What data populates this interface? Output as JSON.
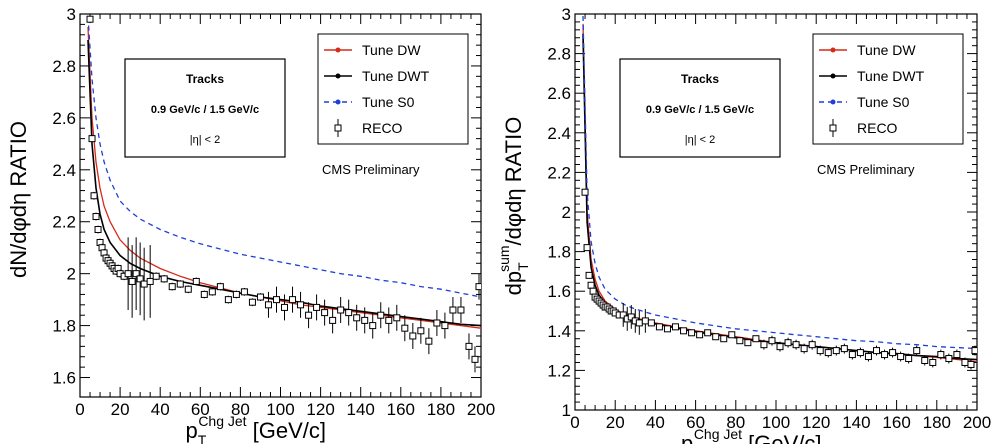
{
  "chart_data": [
    {
      "type": "line",
      "ylabel": "dN/dφdη RATIO",
      "xlabel_main": "p",
      "xlabel_sub": "T",
      "xlabel_sup": "Chg Jet",
      "xlabel_unit": "[GeV/c]",
      "xlim": [
        0,
        200
      ],
      "ylim": [
        1.5,
        3.0
      ],
      "xticks": [
        0,
        20,
        40,
        60,
        80,
        100,
        120,
        140,
        160,
        180,
        200
      ],
      "xtick_labels": [
        "0",
        "20",
        "40",
        "60",
        "80",
        "100",
        "120",
        "140",
        "160",
        "180",
        "200"
      ],
      "yticks": [
        1.6,
        1.8,
        2.0,
        2.2,
        2.4,
        2.6,
        2.8,
        3.0
      ],
      "ytick_labels": [
        "1.6",
        "1.8",
        "2",
        "2.2",
        "2.4",
        "2.6",
        "2.8",
        "3"
      ],
      "infobox": [
        "Tracks",
        "0.9 GeV/c / 1.5 GeV/c",
        "|η| < 2"
      ],
      "annotation": "CMS Preliminary",
      "legend": [
        "Tune DW",
        "Tune DWT",
        "Tune S0",
        "RECO"
      ],
      "series": [
        {
          "name": "Tune DW",
          "x": [
            4,
            6,
            8,
            10,
            12,
            15,
            20,
            25,
            30,
            40,
            50,
            60,
            70,
            80,
            90,
            100,
            110,
            120,
            130,
            140,
            150,
            160,
            170,
            180,
            190,
            200
          ],
          "values": [
            2.95,
            2.6,
            2.43,
            2.33,
            2.26,
            2.2,
            2.13,
            2.09,
            2.06,
            2.02,
            1.99,
            1.965,
            1.945,
            1.925,
            1.91,
            1.895,
            1.88,
            1.87,
            1.86,
            1.85,
            1.84,
            1.83,
            1.82,
            1.81,
            1.8,
            1.79
          ]
        },
        {
          "name": "Tune DWT",
          "x": [
            4,
            6,
            8,
            10,
            12,
            15,
            20,
            25,
            30,
            40,
            50,
            60,
            70,
            80,
            90,
            100,
            110,
            120,
            130,
            140,
            150,
            160,
            170,
            180,
            190,
            200
          ],
          "values": [
            2.9,
            2.5,
            2.33,
            2.23,
            2.17,
            2.12,
            2.07,
            2.04,
            2.02,
            1.99,
            1.97,
            1.955,
            1.94,
            1.925,
            1.91,
            1.9,
            1.89,
            1.875,
            1.865,
            1.855,
            1.845,
            1.835,
            1.825,
            1.815,
            1.805,
            1.8
          ]
        },
        {
          "name": "Tune S0",
          "x": [
            4,
            6,
            8,
            10,
            12,
            15,
            20,
            25,
            30,
            40,
            50,
            60,
            70,
            80,
            90,
            100,
            110,
            120,
            130,
            140,
            150,
            160,
            170,
            180,
            190,
            200
          ],
          "values": [
            2.99,
            2.75,
            2.6,
            2.5,
            2.43,
            2.36,
            2.28,
            2.24,
            2.21,
            2.17,
            2.14,
            2.115,
            2.095,
            2.075,
            2.06,
            2.045,
            2.03,
            2.015,
            2.0,
            1.99,
            1.975,
            1.965,
            1.95,
            1.94,
            1.925,
            1.91
          ]
        },
        {
          "name": "RECO",
          "x": [
            5,
            6,
            7,
            8,
            9,
            10,
            11,
            12,
            13,
            14,
            15,
            16,
            17,
            18,
            19,
            20,
            22,
            24,
            26,
            28,
            30,
            32,
            35,
            38,
            42,
            46,
            50,
            54,
            58,
            62,
            66,
            70,
            74,
            78,
            82,
            86,
            90,
            94,
            98,
            102,
            106,
            110,
            114,
            118,
            122,
            126,
            130,
            134,
            138,
            142,
            146,
            150,
            154,
            158,
            162,
            166,
            170,
            174,
            178,
            182,
            186,
            190,
            194,
            197,
            199
          ],
          "values": [
            2.98,
            2.52,
            2.3,
            2.22,
            2.17,
            2.12,
            2.1,
            2.08,
            2.06,
            2.05,
            2.04,
            2.03,
            2.02,
            2.01,
            2.02,
            2.0,
            1.99,
            2.0,
            1.97,
            2.0,
            1.98,
            1.96,
            1.97,
            1.99,
            1.98,
            1.95,
            1.96,
            1.94,
            1.97,
            1.92,
            1.93,
            1.95,
            1.9,
            1.92,
            1.93,
            1.89,
            1.91,
            1.88,
            1.9,
            1.87,
            1.9,
            1.88,
            1.84,
            1.87,
            1.85,
            1.82,
            1.86,
            1.85,
            1.83,
            1.82,
            1.8,
            1.84,
            1.82,
            1.83,
            1.79,
            1.76,
            1.78,
            1.74,
            1.81,
            1.8,
            1.86,
            1.86,
            1.72,
            1.67,
            1.95
          ]
        }
      ]
    },
    {
      "type": "line",
      "ylabel": "dp_T^sum/dφdη RATIO",
      "ylabel_a": "dp",
      "ylabel_sub": "T",
      "ylabel_sup": "sum",
      "ylabel_b": "/dφdη RATIO",
      "xlabel_main": "p",
      "xlabel_sub": "T",
      "xlabel_sup": "Chg Jet",
      "xlabel_unit": "[GeV/c]",
      "xlim": [
        0,
        200
      ],
      "ylim": [
        1.0,
        3.0
      ],
      "xticks": [
        0,
        20,
        40,
        60,
        80,
        100,
        120,
        140,
        160,
        180,
        200
      ],
      "xtick_labels": [
        "0",
        "20",
        "40",
        "60",
        "80",
        "100",
        "120",
        "140",
        "160",
        "180",
        "200"
      ],
      "yticks": [
        1.0,
        1.2,
        1.4,
        1.6,
        1.8,
        2.0,
        2.2,
        2.4,
        2.6,
        2.8,
        3.0
      ],
      "ytick_labels": [
        "1",
        "1.2",
        "1.4",
        "1.6",
        "1.8",
        "2",
        "2.2",
        "2.4",
        "2.6",
        "2.8",
        "3"
      ],
      "infobox": [
        "Tracks",
        "0.9 GeV/c / 1.5 GeV/c",
        "|η| < 2"
      ],
      "annotation": "CMS Preliminary",
      "legend": [
        "Tune DW",
        "Tune DWT",
        "Tune S0",
        "RECO"
      ],
      "series": [
        {
          "name": "Tune DW",
          "x": [
            4,
            6,
            8,
            10,
            12,
            15,
            20,
            25,
            30,
            40,
            50,
            60,
            70,
            80,
            90,
            100,
            110,
            120,
            130,
            140,
            150,
            160,
            170,
            180,
            190,
            200
          ],
          "values": [
            2.95,
            2.0,
            1.76,
            1.66,
            1.6,
            1.55,
            1.51,
            1.48,
            1.465,
            1.44,
            1.42,
            1.4,
            1.385,
            1.37,
            1.355,
            1.34,
            1.33,
            1.32,
            1.31,
            1.3,
            1.29,
            1.28,
            1.275,
            1.265,
            1.255,
            1.245
          ]
        },
        {
          "name": "Tune DWT",
          "x": [
            4,
            6,
            8,
            10,
            12,
            15,
            20,
            25,
            30,
            40,
            50,
            60,
            70,
            80,
            90,
            100,
            110,
            120,
            130,
            140,
            150,
            160,
            170,
            180,
            190,
            200
          ],
          "values": [
            2.9,
            1.95,
            1.72,
            1.63,
            1.58,
            1.54,
            1.5,
            1.475,
            1.46,
            1.435,
            1.415,
            1.395,
            1.38,
            1.365,
            1.35,
            1.34,
            1.33,
            1.32,
            1.31,
            1.3,
            1.29,
            1.285,
            1.275,
            1.27,
            1.26,
            1.255
          ]
        },
        {
          "name": "Tune S0",
          "x": [
            4,
            6,
            8,
            10,
            12,
            15,
            20,
            25,
            30,
            40,
            50,
            60,
            70,
            80,
            90,
            100,
            110,
            120,
            130,
            140,
            150,
            160,
            170,
            180,
            190,
            200
          ],
          "values": [
            2.99,
            2.1,
            1.85,
            1.74,
            1.67,
            1.61,
            1.56,
            1.53,
            1.51,
            1.48,
            1.46,
            1.44,
            1.425,
            1.41,
            1.4,
            1.39,
            1.38,
            1.37,
            1.36,
            1.35,
            1.345,
            1.335,
            1.33,
            1.32,
            1.315,
            1.31
          ]
        },
        {
          "name": "RECO",
          "x": [
            5,
            6,
            7,
            8,
            9,
            10,
            11,
            12,
            13,
            14,
            15,
            16,
            17,
            18,
            19,
            20,
            22,
            24,
            26,
            28,
            30,
            32,
            35,
            38,
            42,
            46,
            50,
            54,
            58,
            62,
            66,
            70,
            74,
            78,
            82,
            86,
            90,
            94,
            98,
            102,
            106,
            110,
            114,
            118,
            122,
            126,
            130,
            134,
            138,
            142,
            146,
            150,
            154,
            158,
            162,
            166,
            170,
            174,
            178,
            182,
            186,
            190,
            194,
            197,
            199
          ],
          "values": [
            2.1,
            1.82,
            1.68,
            1.63,
            1.6,
            1.57,
            1.56,
            1.55,
            1.54,
            1.53,
            1.52,
            1.52,
            1.51,
            1.5,
            1.5,
            1.49,
            1.48,
            1.48,
            1.46,
            1.47,
            1.45,
            1.44,
            1.45,
            1.44,
            1.42,
            1.41,
            1.42,
            1.4,
            1.39,
            1.38,
            1.39,
            1.37,
            1.36,
            1.38,
            1.35,
            1.34,
            1.36,
            1.33,
            1.35,
            1.32,
            1.34,
            1.33,
            1.31,
            1.33,
            1.3,
            1.29,
            1.3,
            1.31,
            1.28,
            1.29,
            1.27,
            1.3,
            1.28,
            1.29,
            1.27,
            1.26,
            1.3,
            1.25,
            1.24,
            1.28,
            1.26,
            1.28,
            1.24,
            1.23,
            1.3
          ]
        }
      ]
    }
  ],
  "style": {
    "dw_color": "#d62a1a",
    "dwt_color": "#000000",
    "s0_color": "#1f3fd8",
    "reco_color": "#000000"
  }
}
